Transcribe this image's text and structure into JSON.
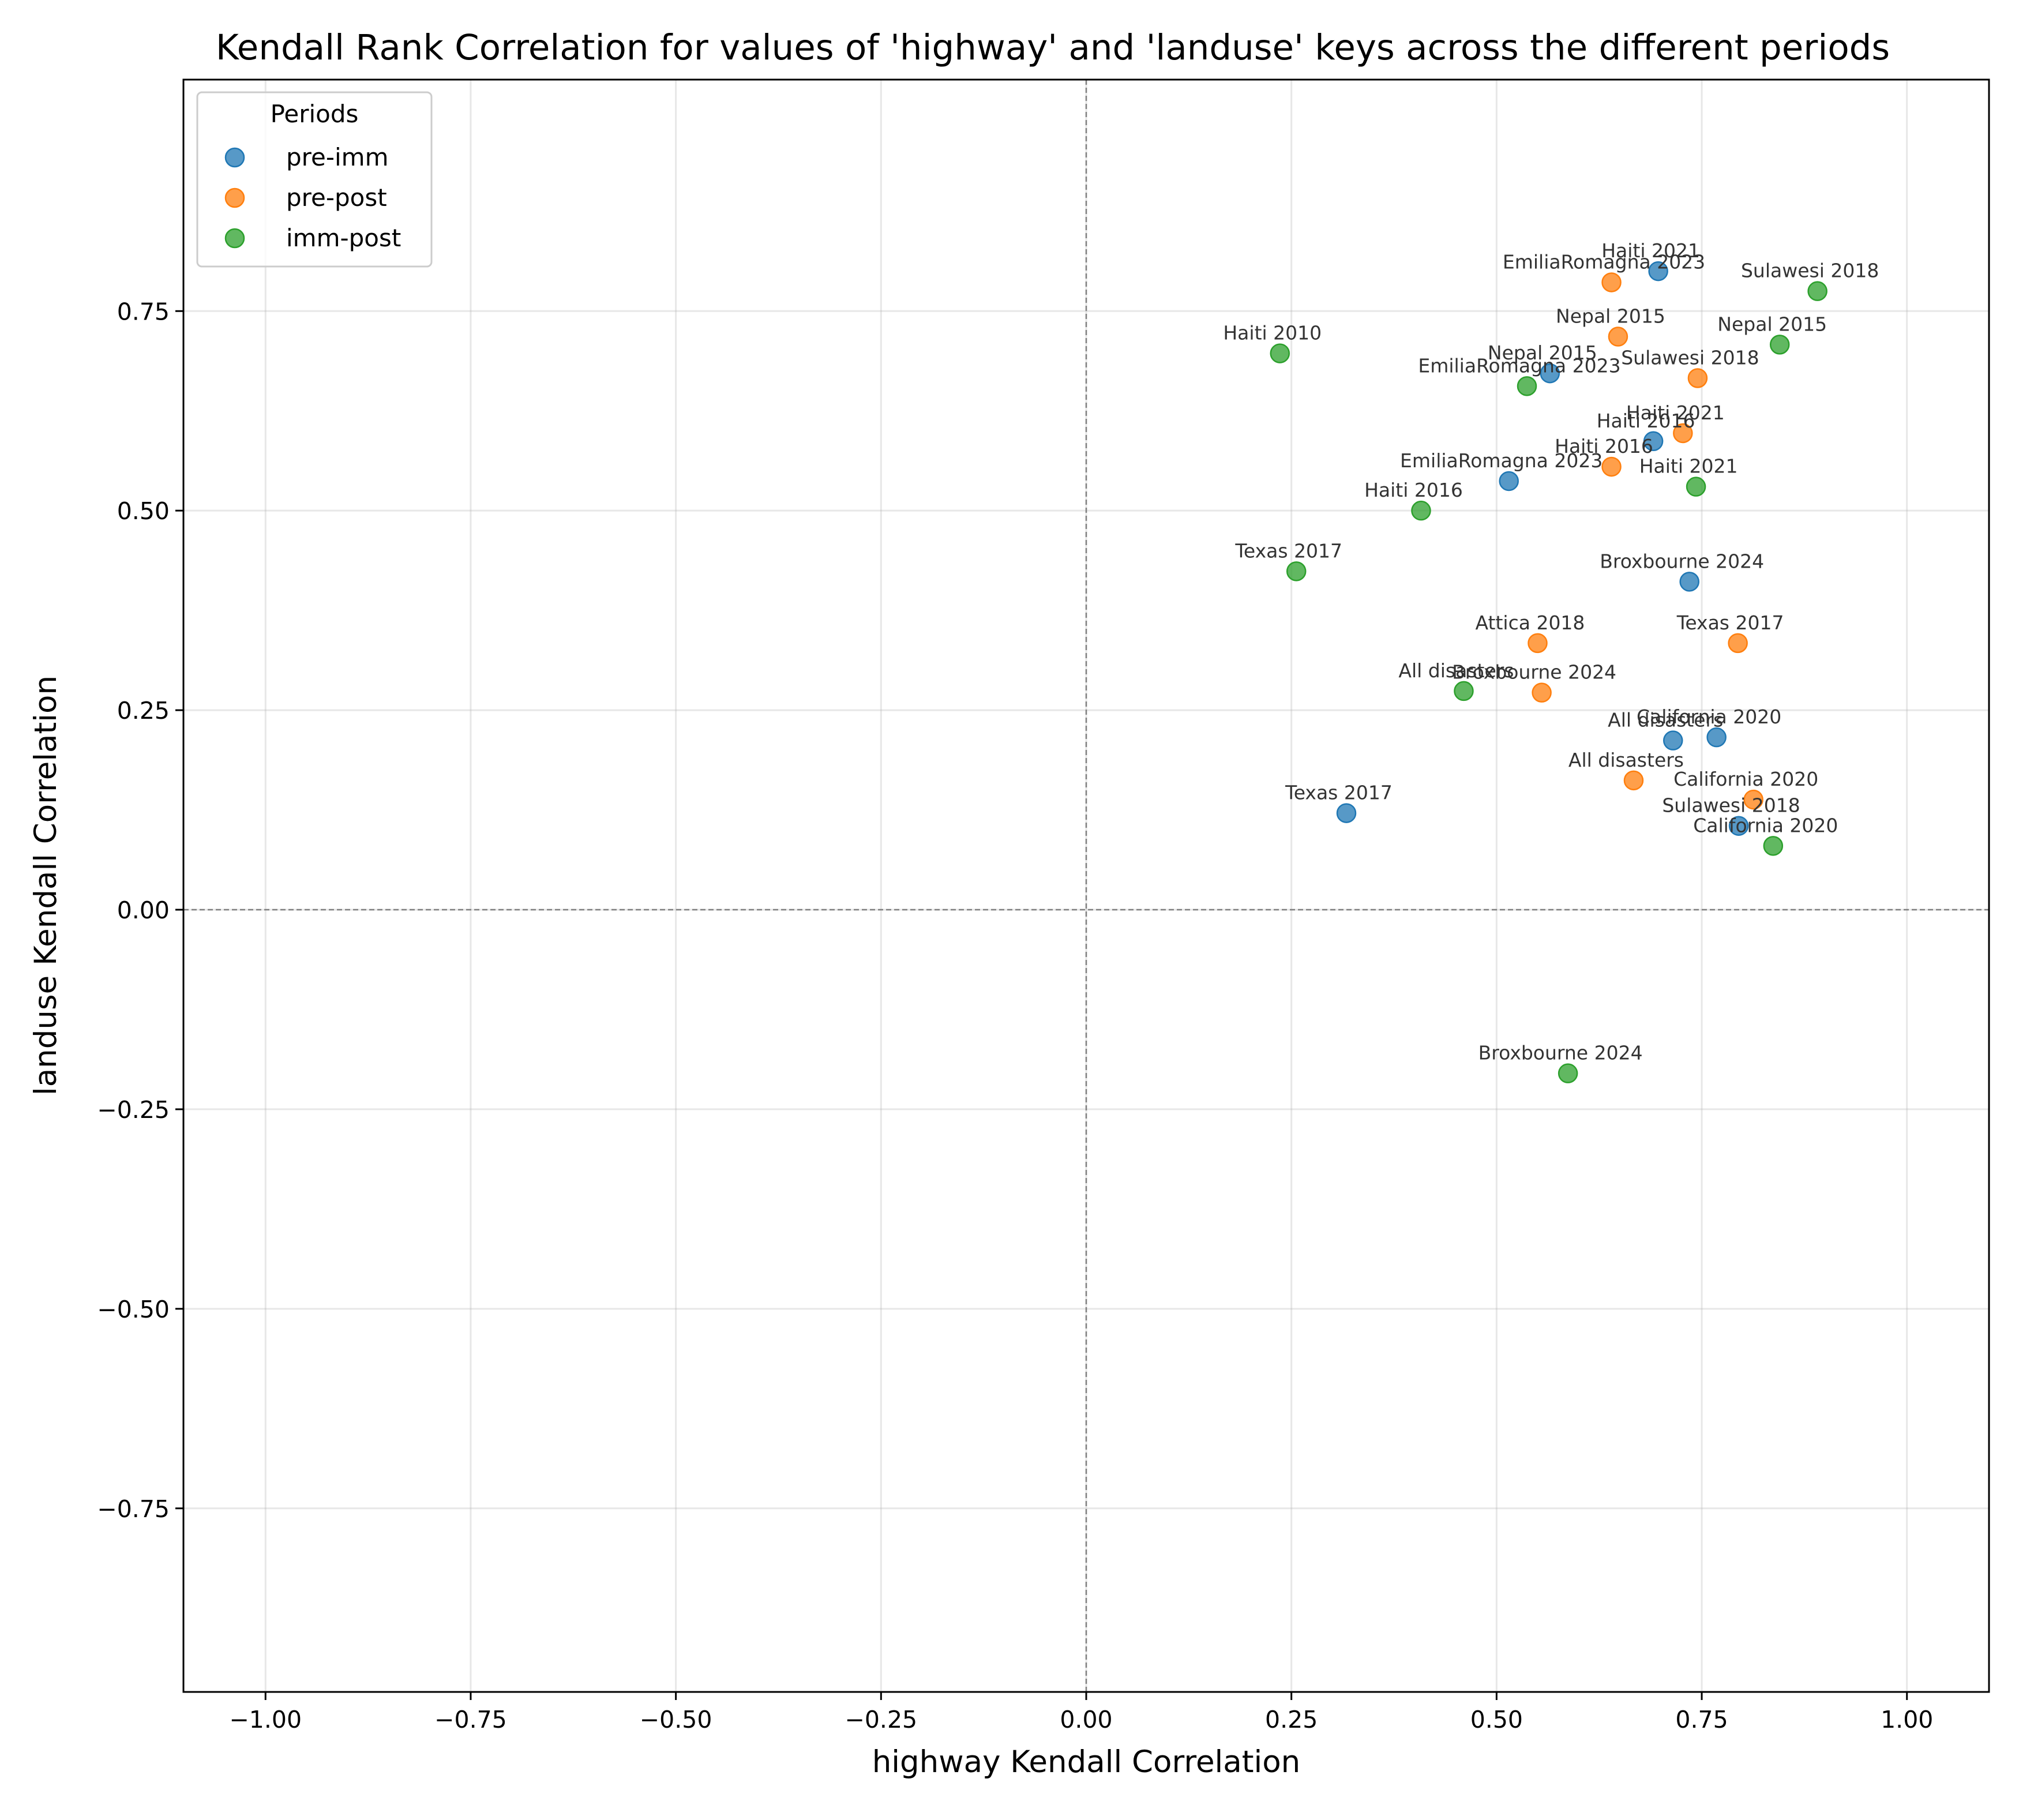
{
  "chart_data": {
    "type": "scatter",
    "title": "Kendall Rank Correlation for values of 'highway' and 'landuse' keys across the different periods",
    "xlabel": "highway Kendall Correlation",
    "ylabel": "landuse Kendall Correlation",
    "xlim": [
      -1.1,
      1.1
    ],
    "ylim": [
      -0.98,
      1.04
    ],
    "x_ticks": [
      -1.0,
      -0.75,
      -0.5,
      -0.25,
      0.0,
      0.25,
      0.5,
      0.75,
      1.0
    ],
    "x_tick_labels": [
      "−1.00",
      "−0.75",
      "−0.50",
      "−0.25",
      "0.00",
      "0.25",
      "0.50",
      "0.75",
      "1.00"
    ],
    "y_ticks": [
      -0.75,
      -0.5,
      -0.25,
      0.0,
      0.25,
      0.5,
      0.75
    ],
    "y_tick_labels": [
      "−0.75",
      "−0.50",
      "−0.25",
      "0.00",
      "0.25",
      "0.50",
      "0.75"
    ],
    "grid": true,
    "reference_lines": {
      "x": 0,
      "y": 0
    },
    "legend": {
      "title": "Periods",
      "position": "top-left"
    },
    "series": [
      {
        "name": "pre-imm",
        "color": "#1f77b4",
        "points": [
          {
            "x": 0.697,
            "y": 0.8,
            "label": "Haiti 2021"
          },
          {
            "x": 0.565,
            "y": 0.672,
            "label": "Nepal 2015"
          },
          {
            "x": 0.691,
            "y": 0.587,
            "label": "Haiti 2016"
          },
          {
            "x": 0.515,
            "y": 0.537,
            "label": "EmiliaRomagna 2023"
          },
          {
            "x": 0.735,
            "y": 0.411,
            "label": "Broxbourne 2024"
          },
          {
            "x": 0.768,
            "y": 0.216,
            "label": "California 2020"
          },
          {
            "x": 0.715,
            "y": 0.212,
            "label": "All disasters"
          },
          {
            "x": 0.317,
            "y": 0.121,
            "label": "Texas 2017"
          },
          {
            "x": 0.795,
            "y": 0.105,
            "label": "Sulawesi 2018"
          }
        ]
      },
      {
        "name": "pre-post",
        "color": "#ff7f0e",
        "points": [
          {
            "x": 0.64,
            "y": 0.786,
            "label": "EmiliaRomagna 2023"
          },
          {
            "x": 0.648,
            "y": 0.718,
            "label": "Nepal 2015"
          },
          {
            "x": 0.745,
            "y": 0.666,
            "label": "Sulawesi 2018"
          },
          {
            "x": 0.727,
            "y": 0.597,
            "label": "Haiti 2021"
          },
          {
            "x": 0.64,
            "y": 0.555,
            "label": "Haiti 2016"
          },
          {
            "x": 0.55,
            "y": 0.334,
            "label": "Attica 2018"
          },
          {
            "x": 0.794,
            "y": 0.334,
            "label": "Texas 2017"
          },
          {
            "x": 0.555,
            "y": 0.272,
            "label": "Broxbourne 2024"
          },
          {
            "x": 0.667,
            "y": 0.162,
            "label": "All disasters"
          },
          {
            "x": 0.813,
            "y": 0.138,
            "label": "California 2020"
          }
        ]
      },
      {
        "name": "imm-post",
        "color": "#2ca02c",
        "points": [
          {
            "x": 0.891,
            "y": 0.775,
            "label": "Sulawesi 2018"
          },
          {
            "x": 0.845,
            "y": 0.708,
            "label": "Nepal 2015"
          },
          {
            "x": 0.236,
            "y": 0.697,
            "label": "Haiti 2010"
          },
          {
            "x": 0.537,
            "y": 0.656,
            "label": "EmiliaRomagna 2023"
          },
          {
            "x": 0.743,
            "y": 0.53,
            "label": "Haiti 2021"
          },
          {
            "x": 0.408,
            "y": 0.5,
            "label": "Haiti 2016"
          },
          {
            "x": 0.256,
            "y": 0.424,
            "label": "Texas 2017"
          },
          {
            "x": 0.46,
            "y": 0.274,
            "label": "All disasters"
          },
          {
            "x": 0.837,
            "y": 0.08,
            "label": "California 2020"
          },
          {
            "x": 0.587,
            "y": -0.205,
            "label": "Broxbourne 2024"
          }
        ]
      }
    ]
  }
}
